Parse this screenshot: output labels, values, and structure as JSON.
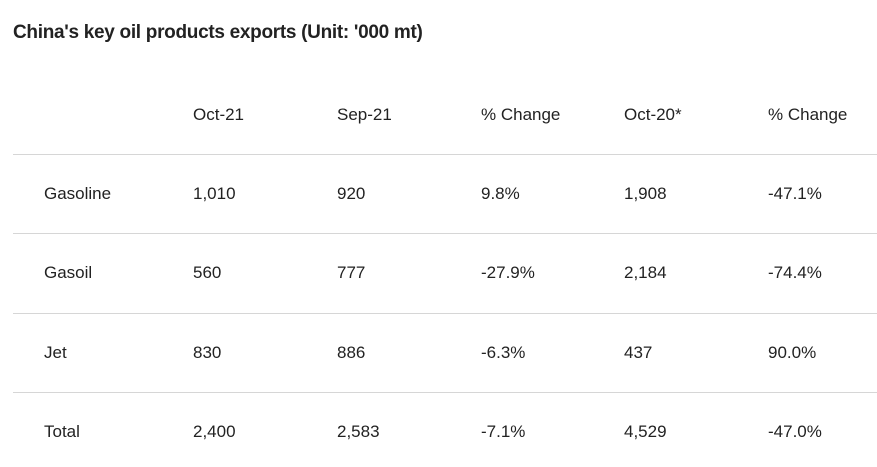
{
  "title": "China's key oil products exports (Unit: '000 mt)",
  "table": {
    "columns": [
      "Oct-21",
      "Sep-21",
      "% Change",
      "Oct-20*",
      "% Change"
    ],
    "rows": [
      {
        "label": "Gasoline",
        "cells": [
          "1,010",
          "920",
          "9.8%",
          "1,908",
          "-47.1%"
        ]
      },
      {
        "label": "Gasoil",
        "cells": [
          "560",
          "777",
          "-27.9%",
          "2,184",
          "-74.4%"
        ]
      },
      {
        "label": "Jet",
        "cells": [
          "830",
          "886",
          "-6.3%",
          "437",
          "90.0%"
        ]
      },
      {
        "label": "Total",
        "cells": [
          "2,400",
          "2,583",
          "-7.1%",
          "4,529",
          "-47.0%"
        ]
      }
    ]
  }
}
